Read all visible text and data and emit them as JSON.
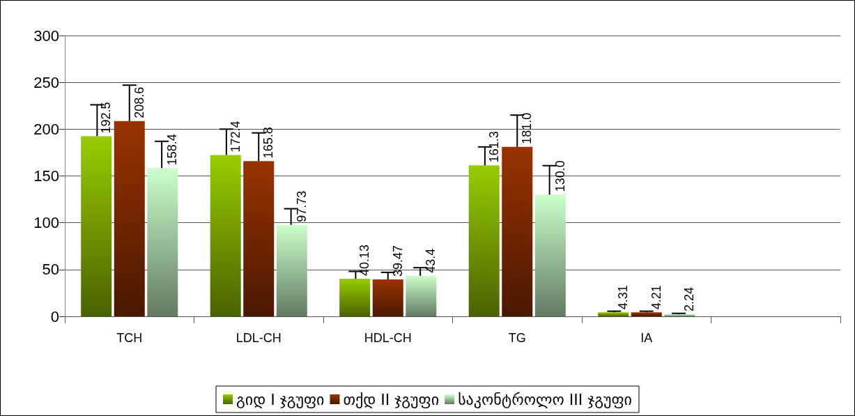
{
  "chart_data": {
    "type": "bar",
    "categories": [
      "TCH",
      "LDL-CH",
      "HDL-CH",
      "TG",
      "IA",
      null
    ],
    "series": [
      {
        "name": "გიდ I ჯგუფი",
        "color": "#99cc00",
        "values": [
          192.5,
          172.4,
          40.13,
          161.3,
          4.31,
          null
        ],
        "value_labels": [
          "192.5",
          "172.4",
          "40.13",
          "161.3",
          "4.31",
          null
        ],
        "errors": [
          [
            192.5,
            226
          ],
          [
            172.4,
            200
          ],
          [
            40.13,
            48
          ],
          [
            161.3,
            181
          ],
          [
            4.31,
            5.5
          ],
          null
        ]
      },
      {
        "name": "თქდ II ჯგუფი",
        "color": "#993300",
        "values": [
          208.6,
          165.8,
          39.47,
          181.0,
          4.21,
          null
        ],
        "value_labels": [
          "208.6",
          "165.8",
          "39.47",
          "181.0",
          "4.21",
          null
        ],
        "errors": [
          [
            208.6,
            247
          ],
          [
            165.8,
            196
          ],
          [
            39.47,
            47
          ],
          [
            181.0,
            215
          ],
          [
            4.21,
            5.5
          ],
          null
        ]
      },
      {
        "name": "საკონტროლო III ჯგუფი",
        "color": "#ccffcc",
        "values": [
          158.4,
          97.73,
          43.4,
          130.0,
          2.24,
          null
        ],
        "value_labels": [
          "158.4",
          "97.73",
          "43.4",
          "130.0",
          "2.24",
          null
        ],
        "errors": [
          [
            158.4,
            187
          ],
          [
            97.73,
            115
          ],
          [
            43.4,
            52
          ],
          [
            130.0,
            161
          ],
          [
            2.24,
            3.2
          ],
          null
        ]
      }
    ],
    "ylim": [
      0,
      300
    ],
    "yticks": [
      0,
      50,
      100,
      150,
      200,
      250,
      300
    ],
    "grid": "y",
    "legend": "bottom"
  }
}
